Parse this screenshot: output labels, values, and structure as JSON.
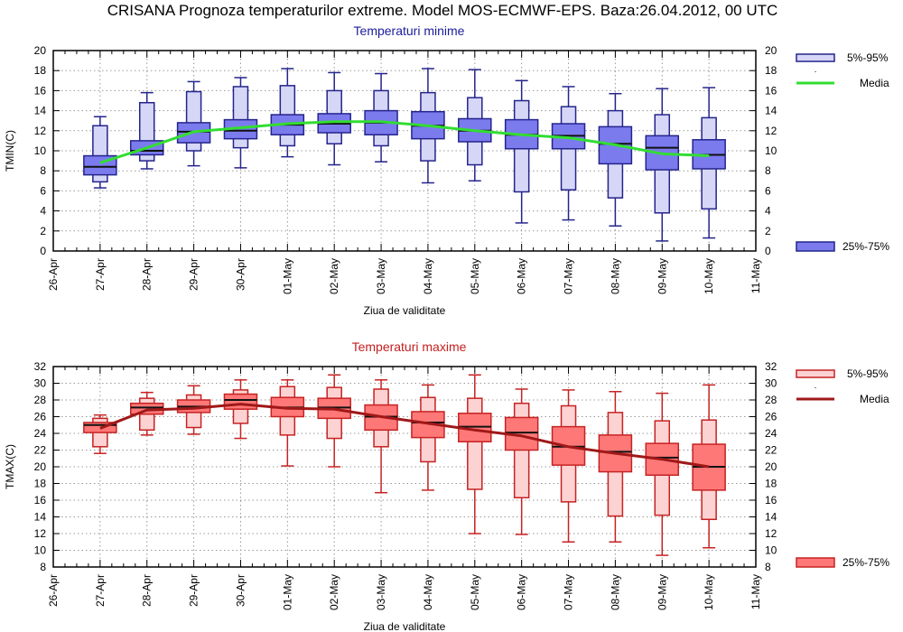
{
  "title": "CRISANA  Prognoza temperaturilor extreme.  Model MOS-ECMWF-EPS. Baza:26.04.2012, 00 UTC",
  "chart_data": [
    {
      "type": "boxplot",
      "title": "Temperaturi minime",
      "xlabel": "Ziua de validitate",
      "ylabel": "TMIN(C)",
      "ylim": [
        0,
        20
      ],
      "ytick_step": 2,
      "grid": true,
      "legend_placement": "right",
      "x_ticks": [
        "26-Apr",
        "27-Apr",
        "28-Apr",
        "29-Apr",
        "30-Apr",
        "01-May",
        "02-May",
        "03-May",
        "04-May",
        "05-May",
        "06-May",
        "07-May",
        "08-May",
        "09-May",
        "10-May",
        "11-May"
      ],
      "categories": [
        "27-Apr",
        "28-Apr",
        "29-Apr",
        "30-Apr",
        "01-May",
        "02-May",
        "03-May",
        "04-May",
        "05-May",
        "06-May",
        "07-May",
        "08-May",
        "09-May",
        "10-May"
      ],
      "legend": {
        "outer_box": "5%-95%",
        "median_marker": "·",
        "mean_line": "Media",
        "inner_box": "25%-75%"
      },
      "colors": {
        "outer_fill": "#d6d6f7",
        "inner_fill": "#7b7bee",
        "stroke": "#24248c",
        "mean": "#33dd33",
        "title": "#1c1c9c"
      },
      "series": {
        "whisker_max": [
          13.4,
          15.8,
          16.9,
          17.3,
          18.2,
          17.8,
          17.7,
          18.2,
          18.1,
          17.0,
          16.4,
          15.7,
          16.2,
          16.3
        ],
        "p95": [
          12.5,
          14.8,
          15.9,
          16.4,
          16.5,
          16.0,
          16.0,
          15.8,
          15.3,
          15.0,
          14.4,
          14.0,
          13.6,
          13.3
        ],
        "p75": [
          9.5,
          11.0,
          12.8,
          13.1,
          13.6,
          13.7,
          14.0,
          13.9,
          13.2,
          13.1,
          12.7,
          12.4,
          11.5,
          11.1
        ],
        "median": [
          8.4,
          10.0,
          11.9,
          12.0,
          12.6,
          12.7,
          12.8,
          12.5,
          12.0,
          11.6,
          11.5,
          10.7,
          10.3,
          9.6
        ],
        "p25": [
          7.6,
          9.6,
          10.8,
          11.2,
          11.6,
          11.8,
          11.6,
          11.2,
          10.9,
          10.2,
          10.2,
          8.7,
          8.1,
          8.2
        ],
        "p5": [
          6.9,
          9.0,
          10.0,
          10.3,
          10.5,
          10.7,
          10.5,
          9.0,
          8.6,
          5.9,
          6.1,
          5.3,
          3.8,
          4.2
        ],
        "whisker_min": [
          6.3,
          8.2,
          8.5,
          8.3,
          9.4,
          8.6,
          8.9,
          6.8,
          7.0,
          2.8,
          3.1,
          2.5,
          1.0,
          1.3
        ],
        "media": [
          8.8,
          10.3,
          11.9,
          12.3,
          12.7,
          12.9,
          12.9,
          12.5,
          12.0,
          11.6,
          11.3,
          10.6,
          9.7,
          9.5
        ]
      }
    },
    {
      "type": "boxplot",
      "title": "Temperaturi maxime",
      "xlabel": "Ziua de validitate",
      "ylabel": "TMAX(C)",
      "ylim": [
        8,
        32
      ],
      "ytick_step": 2,
      "grid": true,
      "legend_placement": "right",
      "x_ticks": [
        "26-Apr",
        "27-Apr",
        "28-Apr",
        "29-Apr",
        "30-Apr",
        "01-May",
        "02-May",
        "03-May",
        "04-May",
        "05-May",
        "06-May",
        "07-May",
        "08-May",
        "09-May",
        "10-May",
        "11-May"
      ],
      "categories": [
        "27-Apr",
        "28-Apr",
        "29-Apr",
        "30-Apr",
        "01-May",
        "02-May",
        "03-May",
        "04-May",
        "05-May",
        "06-May",
        "07-May",
        "08-May",
        "09-May",
        "10-May"
      ],
      "legend": {
        "outer_box": "5%-95%",
        "median_marker": "·",
        "mean_line": "Media",
        "inner_box": "25%-75%"
      },
      "colors": {
        "outer_fill": "#fdd2d2",
        "inner_fill": "#ff7878",
        "stroke": "#c62222",
        "mean": "#a01818",
        "title": "#c42020"
      },
      "series": {
        "whisker_max": [
          26.2,
          28.9,
          29.7,
          30.4,
          30.4,
          31.0,
          30.4,
          29.8,
          31.0,
          29.3,
          29.2,
          29.0,
          28.8,
          29.8
        ],
        "p95": [
          25.8,
          28.2,
          28.6,
          29.2,
          29.6,
          29.5,
          29.3,
          28.3,
          28.2,
          27.6,
          27.3,
          26.5,
          25.5,
          25.6
        ],
        "p75": [
          25.3,
          27.6,
          28.0,
          28.7,
          28.3,
          28.2,
          27.4,
          26.6,
          26.4,
          25.9,
          24.8,
          23.8,
          22.8,
          22.7
        ],
        "median": [
          25.0,
          27.1,
          27.2,
          28.0,
          27.1,
          27.1,
          26.0,
          25.3,
          24.8,
          24.1,
          22.4,
          21.8,
          21.1,
          20.0
        ],
        "p25": [
          24.1,
          26.3,
          26.5,
          26.9,
          26.0,
          25.8,
          24.4,
          23.5,
          23.0,
          22.0,
          20.2,
          19.4,
          19.0,
          17.2
        ],
        "p5": [
          22.4,
          24.4,
          24.7,
          25.2,
          23.8,
          23.4,
          22.4,
          20.6,
          17.3,
          16.3,
          15.8,
          14.1,
          14.2,
          13.7
        ],
        "whisker_min": [
          21.6,
          23.8,
          23.9,
          23.4,
          20.1,
          20.0,
          16.9,
          17.2,
          12.0,
          11.9,
          11.0,
          11.0,
          9.4,
          10.3
        ],
        "media": [
          24.6,
          26.8,
          27.0,
          27.5,
          27.0,
          26.9,
          26.0,
          25.2,
          24.4,
          23.7,
          22.4,
          21.6,
          20.9,
          20.0
        ]
      }
    }
  ]
}
